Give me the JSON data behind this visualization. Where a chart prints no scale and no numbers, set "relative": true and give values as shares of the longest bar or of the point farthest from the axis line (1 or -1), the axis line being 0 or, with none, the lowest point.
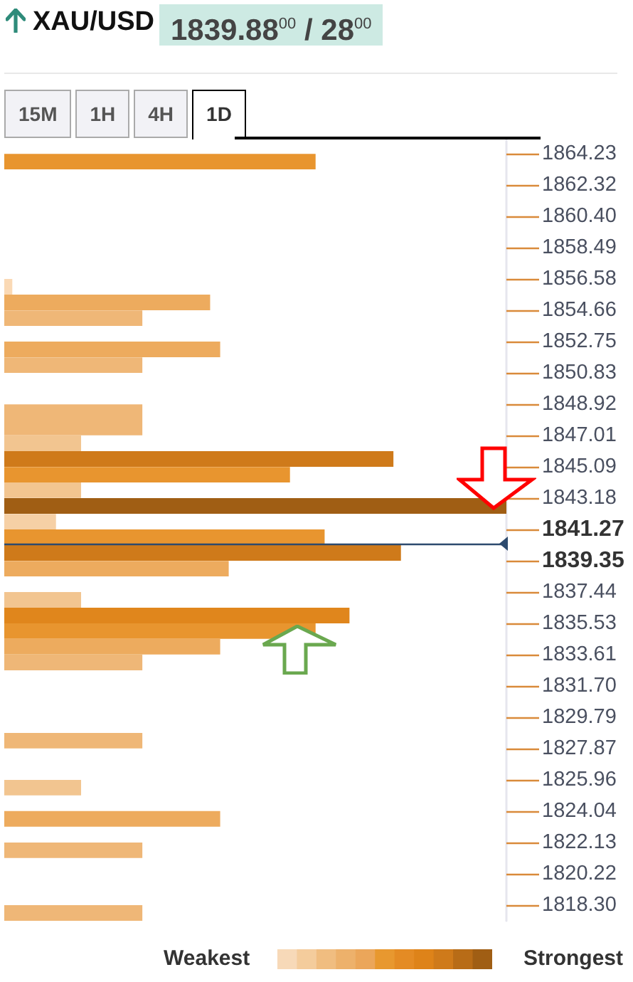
{
  "chart_data": {
    "type": "bar",
    "orientation": "horizontal",
    "relative": true,
    "title": "XAU/USD",
    "subtitle": "1839.88$^{00}$ / 28$^{00}$",
    "annotations": [
      "15M",
      "1H",
      "4H",
      "1D",
      "Weakest",
      "Strongest"
    ],
    "x": [
      1863.75,
      1856.1,
      1855.14,
      1854.18,
      1852.27,
      1851.31,
      1848.44,
      1847.49,
      1846.53,
      1845.57,
      1844.61,
      1843.66,
      1842.7,
      1841.74,
      1840.79,
      1839.83,
      1838.87,
      1836.96,
      1836.0,
      1835.05,
      1834.09,
      1833.13,
      1828.35,
      1825.48,
      1823.57,
      1821.65,
      1817.82
    ],
    "values": [
      0.62,
      0.016,
      0.41,
      0.275,
      0.43,
      0.275,
      0.275,
      0.275,
      0.153,
      0.775,
      0.569,
      0.153,
      1,
      0.103,
      0.638,
      0.79,
      0.447,
      0.153,
      0.6875,
      0.62,
      0.43,
      0.275,
      0.275,
      0.153,
      0.43,
      0.275,
      0.275
    ],
    "colors": [
      "#e8952f",
      "#fad9b5",
      "#edab5e",
      "#efb777",
      "#edab5e",
      "#efb777",
      "#efb777",
      "#efb777",
      "#f2c590",
      "#cf7a1a",
      "#e8952f",
      "#f2c590",
      "#a05e14",
      "#f6d0a5",
      "#e8952f",
      "#cf7a1a",
      "#edab5e",
      "#f2c590",
      "#e0861c",
      "#e8952f",
      "#edab5e",
      "#efb777",
      "#efb777",
      "#f2c590",
      "#edab5e",
      "#efb777",
      "#efb777"
    ],
    "ylim": [
      1817.34,
      1865.19
    ],
    "yticks": [
      1864.23,
      1862.32,
      {
        "value": 1860.4,
        "label": "1860.40"
      },
      1858.49,
      1856.58,
      1854.66,
      1852.75,
      1850.83,
      1848.92,
      1847.01,
      1845.09,
      1843.18,
      1841.27,
      1839.35,
      1837.44,
      1835.53,
      1833.61,
      {
        "value": 1831.7,
        "label": "1831.70"
      },
      1829.79,
      1827.87,
      1825.96,
      1824.04,
      1822.13,
      1820.22,
      {
        "value": 1818.3,
        "label": "1818.30"
      }
    ],
    "ref_lines": [
      {
        "axis": "y",
        "value": 1840.4,
        "color": "#2c4a6e"
      }
    ],
    "grid": false
  }
}
